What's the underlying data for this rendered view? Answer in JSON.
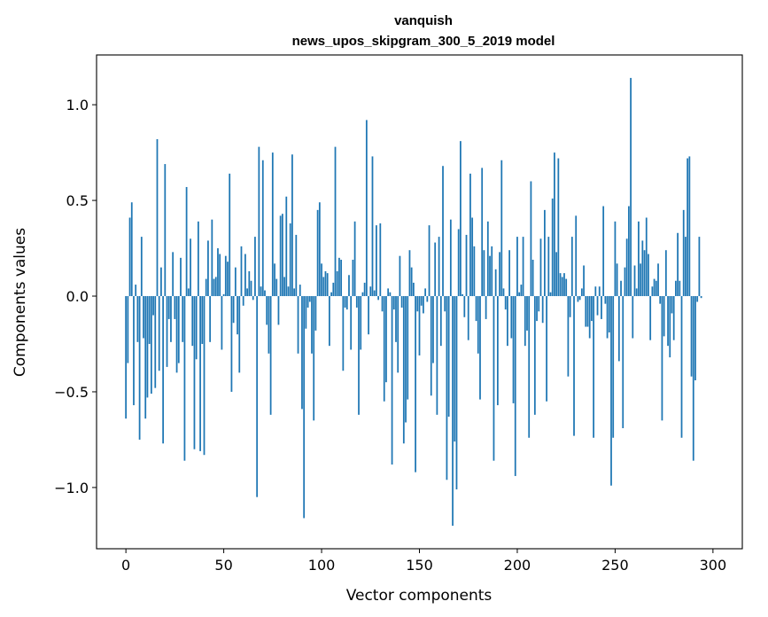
{
  "chart_data": {
    "type": "bar",
    "title": "vanquish",
    "subtitle": "news_upos_skipgram_300_5_2019 model",
    "xlabel": "Vector components",
    "ylabel": "Components values",
    "xlim": [
      -15,
      315
    ],
    "ylim": [
      -1.32,
      1.26
    ],
    "xticks": [
      0,
      50,
      100,
      150,
      200,
      250,
      300
    ],
    "yticks": [
      -1.0,
      -0.5,
      0.0,
      0.5,
      1.0
    ],
    "ytick_labels": [
      "−1.0",
      "−0.5",
      "0.0",
      "0.5",
      "1.0"
    ],
    "grid": false,
    "values": [
      -0.64,
      -0.35,
      0.41,
      0.49,
      -0.57,
      0.06,
      -0.24,
      -0.75,
      0.31,
      -0.22,
      -0.64,
      -0.53,
      -0.25,
      -0.51,
      -0.1,
      -0.48,
      0.82,
      -0.39,
      0.15,
      -0.77,
      0.69,
      -0.37,
      -0.12,
      -0.24,
      0.23,
      -0.12,
      -0.4,
      -0.35,
      0.2,
      -0.24,
      -0.86,
      0.57,
      0.04,
      0.3,
      -0.26,
      -0.8,
      -0.33,
      0.39,
      -0.81,
      -0.25,
      -0.83,
      0.09,
      0.29,
      -0.24,
      0.4,
      0.09,
      0.1,
      0.25,
      0.22,
      -0.28,
      0.01,
      0.21,
      0.18,
      0.64,
      -0.5,
      -0.14,
      0.15,
      -0.2,
      -0.4,
      0.26,
      -0.05,
      0.22,
      0.04,
      0.13,
      0.08,
      -0.02,
      0.31,
      -1.05,
      0.78,
      0.05,
      0.71,
      0.03,
      -0.15,
      -0.3,
      -0.62,
      0.75,
      0.17,
      0.09,
      -0.15,
      0.42,
      0.43,
      0.1,
      0.52,
      0.05,
      0.38,
      0.74,
      0.04,
      0.32,
      -0.3,
      0.06,
      -0.59,
      -1.16,
      -0.17,
      -0.06,
      -0.03,
      -0.3,
      -0.65,
      -0.18,
      0.45,
      0.49,
      0.17,
      0.1,
      0.13,
      0.12,
      -0.26,
      0.02,
      0.07,
      0.78,
      0.13,
      0.2,
      0.19,
      -0.39,
      -0.06,
      -0.07,
      0.11,
      -0.28,
      0.19,
      0.39,
      -0.06,
      -0.62,
      -0.28,
      0.02,
      0.07,
      0.92,
      -0.2,
      0.05,
      0.73,
      0.03,
      0.37,
      -0.02,
      0.38,
      -0.08,
      -0.55,
      -0.45,
      0.04,
      0.02,
      -0.88,
      -0.07,
      -0.24,
      -0.4,
      0.21,
      -0.06,
      -0.77,
      -0.66,
      -0.54,
      0.24,
      0.15,
      0.07,
      -0.92,
      -0.08,
      -0.31,
      -0.05,
      -0.09,
      0.04,
      -0.03,
      0.37,
      -0.52,
      -0.35,
      0.28,
      -0.62,
      0.31,
      -0.26,
      0.68,
      -0.08,
      -0.96,
      -0.63,
      0.4,
      -1.2,
      -0.76,
      -1.01,
      0.35,
      0.81,
      0.01,
      -0.11,
      0.32,
      -0.23,
      0.64,
      0.41,
      0.26,
      -0.13,
      -0.3,
      -0.54,
      0.67,
      0.24,
      -0.12,
      0.39,
      0.21,
      0.26,
      -0.86,
      0.14,
      -0.57,
      0.23,
      0.71,
      0.04,
      -0.07,
      -0.26,
      0.24,
      -0.22,
      -0.56,
      -0.94,
      0.31,
      0.02,
      0.06,
      0.31,
      -0.26,
      -0.18,
      -0.74,
      0.6,
      0.19,
      -0.62,
      -0.13,
      -0.08,
      0.3,
      -0.14,
      0.45,
      -0.55,
      0.31,
      0.02,
      0.51,
      0.75,
      0.23,
      0.72,
      0.12,
      0.1,
      0.12,
      0.09,
      -0.42,
      -0.11,
      0.31,
      -0.73,
      0.42,
      -0.03,
      -0.02,
      0.04,
      0.16,
      -0.16,
      -0.16,
      -0.22,
      -0.13,
      -0.74,
      0.05,
      -0.1,
      0.05,
      -0.12,
      0.47,
      -0.04,
      -0.22,
      -0.19,
      -0.99,
      -0.74,
      0.39,
      0.17,
      -0.34,
      0.08,
      -0.69,
      0.15,
      0.3,
      0.47,
      1.14,
      -0.22,
      0.16,
      0.04,
      0.39,
      0.17,
      0.29,
      0.24,
      0.41,
      0.22,
      -0.23,
      0.05,
      0.09,
      0.08,
      0.17,
      -0.04,
      -0.65,
      -0.21,
      0.24,
      -0.26,
      -0.32,
      -0.09,
      -0.23,
      0.08,
      0.33,
      0.08,
      -0.74,
      0.45,
      0.31,
      0.72,
      0.73,
      -0.42,
      -0.86,
      -0.44,
      -0.03,
      0.31,
      -0.01
    ]
  }
}
